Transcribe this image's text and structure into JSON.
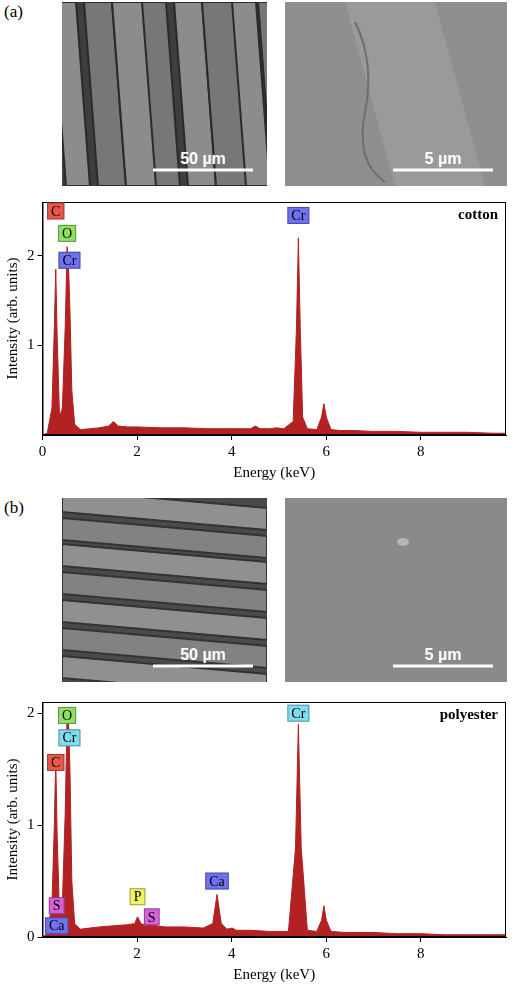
{
  "figure": [
    {
      "panel": "(a)",
      "images": [
        {
          "scale_bar": "50 µm"
        },
        {
          "scale_bar": "5 µm"
        }
      ]
    },
    {
      "panel": "(b)",
      "images": [
        {
          "scale_bar": "50 µm"
        },
        {
          "scale_bar": "5 µm"
        }
      ]
    }
  ],
  "chart_data": [
    {
      "type": "area",
      "title": "cotton",
      "x_label": "Energy (keV)",
      "y_label": "Intensity (arb. units)",
      "x": [
        0,
        0.1,
        0.2,
        0.25,
        0.28,
        0.31,
        0.36,
        0.42,
        0.48,
        0.52,
        0.55,
        0.58,
        0.62,
        0.68,
        0.8,
        1.0,
        1.2,
        1.4,
        1.5,
        1.6,
        1.8,
        2.0,
        2.5,
        3.0,
        3.5,
        4.0,
        4.4,
        4.5,
        4.6,
        4.8,
        4.95,
        5.1,
        5.3,
        5.37,
        5.41,
        5.45,
        5.5,
        5.6,
        5.8,
        5.9,
        5.95,
        6.0,
        6.1,
        6.3,
        6.6,
        7.0,
        7.5,
        8.0,
        8.5,
        9.0,
        9.5,
        9.8
      ],
      "series": [
        {
          "color": "#b22222",
          "values": [
            0,
            0.02,
            0.3,
            1.2,
            1.85,
            1.1,
            0.2,
            0.3,
            1.2,
            2.1,
            1.9,
            1.4,
            0.5,
            0.12,
            0.06,
            0.07,
            0.08,
            0.1,
            0.15,
            0.1,
            0.09,
            0.09,
            0.08,
            0.08,
            0.07,
            0.07,
            0.07,
            0.1,
            0.07,
            0.07,
            0.08,
            0.07,
            0.15,
            1.2,
            2.2,
            1.2,
            0.2,
            0.07,
            0.06,
            0.2,
            0.35,
            0.2,
            0.06,
            0.05,
            0.05,
            0.04,
            0.04,
            0.03,
            0.03,
            0.03,
            0.02,
            0.02
          ]
        }
      ],
      "xlim": [
        0,
        9.8
      ],
      "ylim": [
        0,
        2.6
      ],
      "xticks": [
        0,
        2,
        4,
        6,
        8
      ],
      "yticks": [
        1,
        2
      ],
      "grid": false,
      "annotations": [
        {
          "text": "C",
          "x": 0.28,
          "y": 2.5,
          "color": "#e8574a"
        },
        {
          "text": "O",
          "x": 0.52,
          "y": 2.25,
          "color": "#8fe060"
        },
        {
          "text": "Cr",
          "x": 0.57,
          "y": 1.95,
          "color": "#7070f0"
        },
        {
          "text": "Cr",
          "x": 5.41,
          "y": 2.45,
          "color": "#7070f0"
        }
      ]
    },
    {
      "type": "area",
      "title": "polyester",
      "x_label": "Energy (keV)",
      "y_label": "Intensity (arb. units)",
      "x": [
        0,
        0.1,
        0.2,
        0.25,
        0.28,
        0.31,
        0.36,
        0.42,
        0.48,
        0.52,
        0.55,
        0.58,
        0.62,
        0.68,
        0.8,
        1.0,
        1.2,
        1.5,
        1.8,
        1.95,
        2.01,
        2.08,
        2.2,
        2.31,
        2.4,
        2.6,
        3.0,
        3.4,
        3.6,
        3.69,
        3.78,
        3.9,
        4.01,
        4.1,
        4.4,
        4.8,
        5.2,
        5.35,
        5.41,
        5.47,
        5.6,
        5.8,
        5.9,
        5.95,
        6.0,
        6.1,
        6.4,
        7.0,
        7.5,
        8.0,
        8.5,
        9.0,
        9.5,
        9.8
      ],
      "series": [
        {
          "color": "#b22222",
          "values": [
            0,
            0.03,
            0.3,
            1.0,
            1.6,
            0.9,
            0.2,
            0.3,
            1.1,
            2.0,
            1.95,
            1.5,
            0.5,
            0.12,
            0.07,
            0.08,
            0.09,
            0.1,
            0.11,
            0.12,
            0.18,
            0.12,
            0.1,
            0.14,
            0.1,
            0.09,
            0.09,
            0.08,
            0.12,
            0.38,
            0.12,
            0.07,
            0.08,
            0.06,
            0.06,
            0.05,
            0.05,
            0.8,
            1.9,
            0.8,
            0.06,
            0.05,
            0.15,
            0.28,
            0.15,
            0.05,
            0.04,
            0.04,
            0.03,
            0.03,
            0.02,
            0.02,
            0.02,
            0.02
          ]
        }
      ],
      "xlim": [
        0,
        9.8
      ],
      "ylim": [
        0,
        2.1
      ],
      "xticks": [
        2,
        4,
        6,
        8
      ],
      "yticks": [
        0,
        1,
        2
      ],
      "grid": false,
      "annotations": [
        {
          "text": "O",
          "x": 0.52,
          "y": 1.98,
          "color": "#8fe060"
        },
        {
          "text": "Cr",
          "x": 0.57,
          "y": 1.78,
          "color": "#80dcef"
        },
        {
          "text": "C",
          "x": 0.28,
          "y": 1.56,
          "color": "#e8574a"
        },
        {
          "text": "S",
          "x": 0.3,
          "y": 0.28,
          "color": "#d860d8"
        },
        {
          "text": "Ca",
          "x": 0.3,
          "y": 0.1,
          "color": "#7070f0"
        },
        {
          "text": "P",
          "x": 2.01,
          "y": 0.36,
          "color": "#f2f266"
        },
        {
          "text": "S",
          "x": 2.31,
          "y": 0.18,
          "color": "#d860d8"
        },
        {
          "text": "Ca",
          "x": 3.69,
          "y": 0.5,
          "color": "#7070f0"
        },
        {
          "text": "Cr",
          "x": 5.41,
          "y": 2.0,
          "color": "#80dcef"
        }
      ]
    }
  ]
}
